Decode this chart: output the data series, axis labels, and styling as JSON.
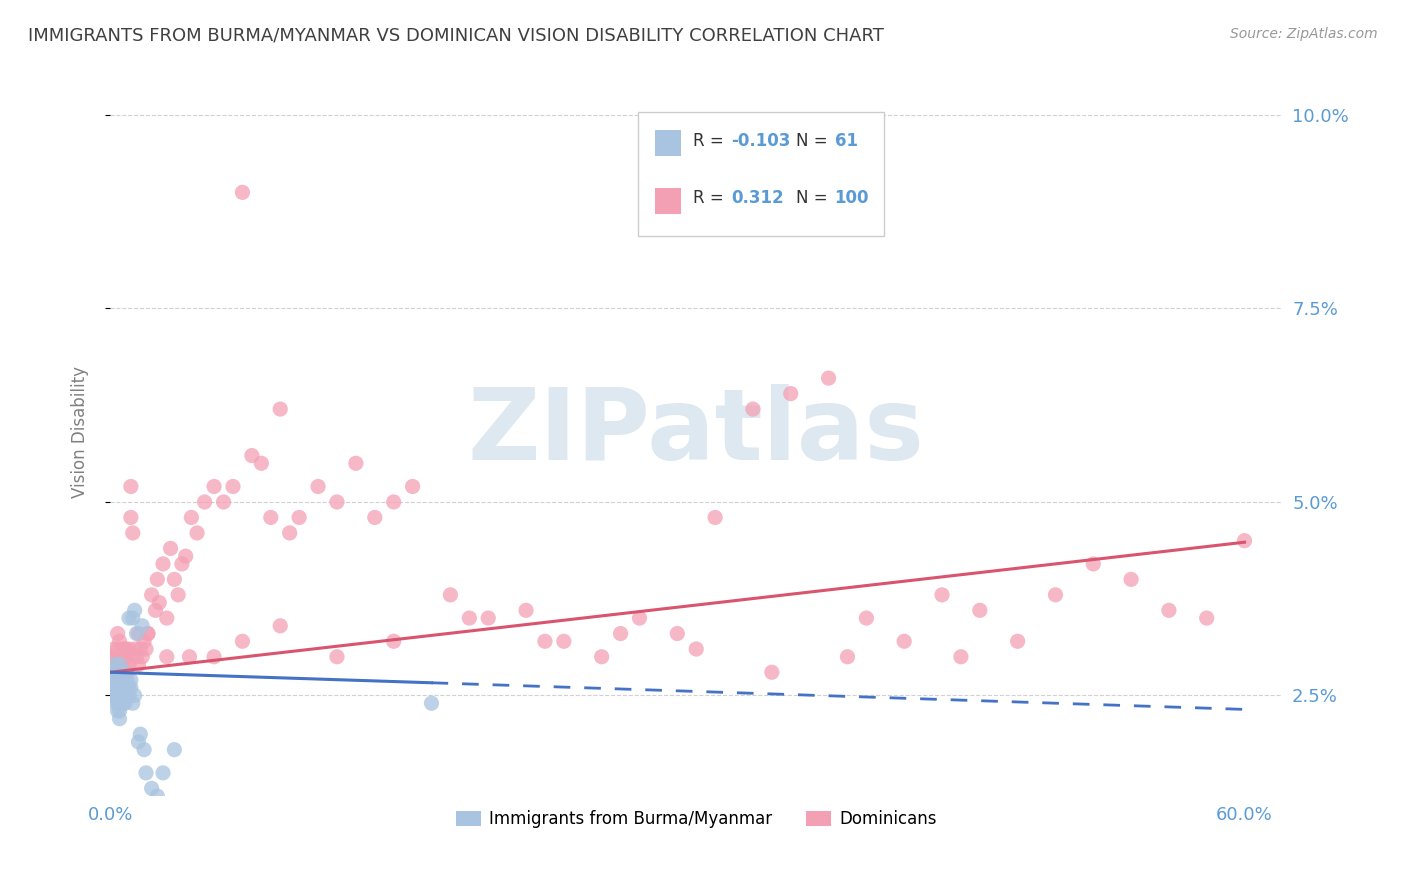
{
  "title": "IMMIGRANTS FROM BURMA/MYANMAR VS DOMINICAN VISION DISABILITY CORRELATION CHART",
  "source": "Source: ZipAtlas.com",
  "ylabel": "Vision Disability",
  "xlim": [
    0.0,
    0.62
  ],
  "ylim": [
    0.012,
    0.106
  ],
  "xticks": [
    0.0,
    0.1,
    0.2,
    0.3,
    0.4,
    0.5,
    0.6
  ],
  "xticklabels": [
    "0.0%",
    "",
    "",
    "",
    "",
    "",
    "60.0%"
  ],
  "yticks": [
    0.025,
    0.05,
    0.075,
    0.1
  ],
  "yticklabels": [
    "2.5%",
    "5.0%",
    "7.5%",
    "10.0%"
  ],
  "color_blue": "#a8c4e0",
  "color_pink": "#f4a0b4",
  "color_line_blue": "#4472c4",
  "color_line_pink": "#d9546e",
  "watermark_color": "#dde8f0",
  "background_color": "#ffffff",
  "grid_color": "#cccccc",
  "title_color": "#404040",
  "axis_tick_color": "#5b9bd5",
  "ylabel_color": "#808080",
  "blue_line_solid_end": 0.17,
  "pink_line_intercept": 0.028,
  "pink_line_slope": 0.028,
  "blue_line_intercept": 0.028,
  "blue_line_slope": -0.008,
  "scatter_blue_x": [
    0.001,
    0.001,
    0.002,
    0.002,
    0.002,
    0.002,
    0.003,
    0.003,
    0.003,
    0.003,
    0.003,
    0.003,
    0.004,
    0.004,
    0.004,
    0.004,
    0.004,
    0.004,
    0.005,
    0.005,
    0.005,
    0.005,
    0.005,
    0.005,
    0.005,
    0.005,
    0.006,
    0.006,
    0.006,
    0.006,
    0.006,
    0.007,
    0.007,
    0.007,
    0.007,
    0.007,
    0.008,
    0.008,
    0.008,
    0.009,
    0.009,
    0.01,
    0.01,
    0.01,
    0.011,
    0.011,
    0.012,
    0.012,
    0.013,
    0.013,
    0.014,
    0.015,
    0.016,
    0.017,
    0.018,
    0.019,
    0.022,
    0.025,
    0.028,
    0.034,
    0.17
  ],
  "scatter_blue_y": [
    0.026,
    0.027,
    0.025,
    0.026,
    0.027,
    0.028,
    0.024,
    0.025,
    0.026,
    0.027,
    0.028,
    0.029,
    0.023,
    0.024,
    0.025,
    0.026,
    0.027,
    0.028,
    0.022,
    0.023,
    0.024,
    0.025,
    0.026,
    0.027,
    0.028,
    0.029,
    0.024,
    0.025,
    0.026,
    0.027,
    0.028,
    0.024,
    0.025,
    0.026,
    0.027,
    0.028,
    0.024,
    0.025,
    0.026,
    0.026,
    0.027,
    0.025,
    0.026,
    0.035,
    0.026,
    0.027,
    0.024,
    0.035,
    0.025,
    0.036,
    0.033,
    0.019,
    0.02,
    0.034,
    0.018,
    0.015,
    0.013,
    0.012,
    0.015,
    0.018,
    0.024
  ],
  "scatter_pink_x": [
    0.001,
    0.002,
    0.002,
    0.003,
    0.003,
    0.004,
    0.004,
    0.005,
    0.005,
    0.005,
    0.006,
    0.006,
    0.007,
    0.007,
    0.008,
    0.008,
    0.009,
    0.009,
    0.01,
    0.01,
    0.011,
    0.011,
    0.012,
    0.013,
    0.014,
    0.015,
    0.016,
    0.017,
    0.018,
    0.019,
    0.02,
    0.022,
    0.024,
    0.025,
    0.026,
    0.028,
    0.03,
    0.032,
    0.034,
    0.036,
    0.038,
    0.04,
    0.043,
    0.046,
    0.05,
    0.055,
    0.06,
    0.065,
    0.07,
    0.075,
    0.08,
    0.085,
    0.09,
    0.095,
    0.1,
    0.11,
    0.12,
    0.13,
    0.14,
    0.15,
    0.16,
    0.18,
    0.2,
    0.22,
    0.24,
    0.26,
    0.28,
    0.3,
    0.32,
    0.34,
    0.36,
    0.38,
    0.4,
    0.42,
    0.44,
    0.46,
    0.48,
    0.5,
    0.52,
    0.54,
    0.56,
    0.58,
    0.6,
    0.45,
    0.39,
    0.35,
    0.31,
    0.27,
    0.23,
    0.19,
    0.15,
    0.12,
    0.09,
    0.07,
    0.055,
    0.042,
    0.03,
    0.02,
    0.015,
    0.008
  ],
  "scatter_pink_y": [
    0.03,
    0.029,
    0.031,
    0.028,
    0.03,
    0.031,
    0.033,
    0.029,
    0.03,
    0.032,
    0.03,
    0.031,
    0.029,
    0.03,
    0.03,
    0.031,
    0.028,
    0.03,
    0.029,
    0.031,
    0.048,
    0.052,
    0.046,
    0.031,
    0.03,
    0.033,
    0.031,
    0.03,
    0.032,
    0.031,
    0.033,
    0.038,
    0.036,
    0.04,
    0.037,
    0.042,
    0.035,
    0.044,
    0.04,
    0.038,
    0.042,
    0.043,
    0.048,
    0.046,
    0.05,
    0.052,
    0.05,
    0.052,
    0.09,
    0.056,
    0.055,
    0.048,
    0.062,
    0.046,
    0.048,
    0.052,
    0.05,
    0.055,
    0.048,
    0.05,
    0.052,
    0.038,
    0.035,
    0.036,
    0.032,
    0.03,
    0.035,
    0.033,
    0.048,
    0.062,
    0.064,
    0.066,
    0.035,
    0.032,
    0.038,
    0.036,
    0.032,
    0.038,
    0.042,
    0.04,
    0.036,
    0.035,
    0.045,
    0.03,
    0.03,
    0.028,
    0.031,
    0.033,
    0.032,
    0.035,
    0.032,
    0.03,
    0.034,
    0.032,
    0.03,
    0.03,
    0.03,
    0.033,
    0.029,
    0.031
  ]
}
